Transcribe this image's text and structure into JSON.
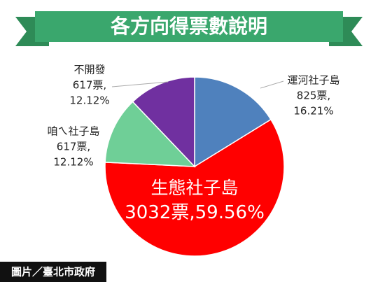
{
  "chart_data": {
    "type": "pie",
    "title": "各方向得票數說明",
    "categories": [
      "運河社子島",
      "生態社子島",
      "咱ㄟ社子島",
      "不開發"
    ],
    "values": [
      825,
      3032,
      617,
      617
    ],
    "value_labels": [
      "825票,",
      "3032票,",
      "617票,",
      "617票,"
    ],
    "percents": [
      16.21,
      59.56,
      12.12,
      12.12
    ],
    "percent_labels": [
      "16.21%",
      "59.56%",
      "12.12%",
      "12.12%"
    ],
    "colors": [
      "#4f81bd",
      "#ff0000",
      "#6fcf97",
      "#7030a0"
    ],
    "credit": "圖片／臺北市政府"
  }
}
